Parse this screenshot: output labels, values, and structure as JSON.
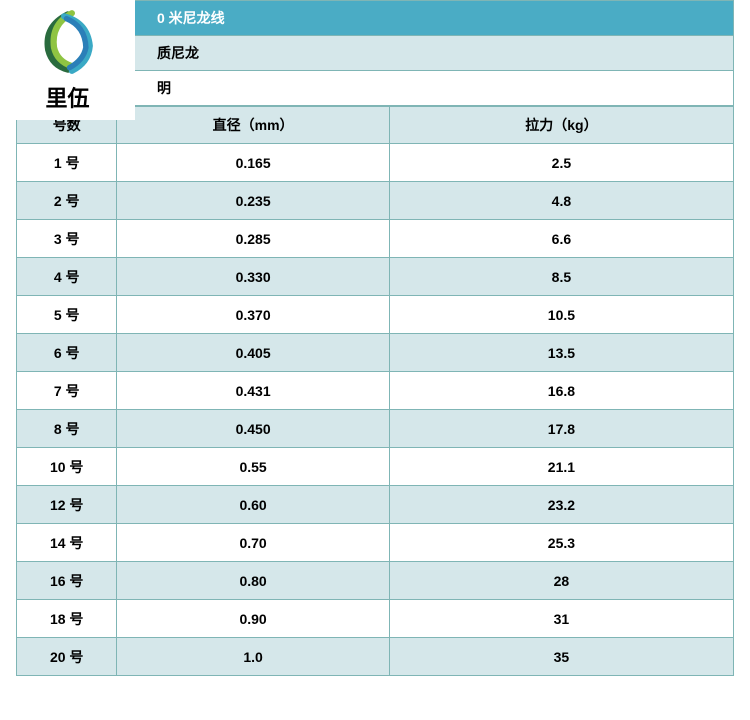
{
  "logo": {
    "brand_text": "里伍",
    "swirl_colors": {
      "dark_green": "#2a6b3e",
      "light_green": "#8fc442",
      "teal": "#3aa9c5",
      "blue": "#2b7fb8"
    }
  },
  "header": {
    "title_partial": "0 米尼龙线",
    "material_partial": "质尼龙",
    "note_partial": "明"
  },
  "table": {
    "columns": [
      "号数",
      "直径（mm）",
      "拉力（kg）"
    ],
    "column_widths_pct": [
      14,
      38,
      48
    ],
    "rows": [
      [
        "1 号",
        "0.165",
        "2.5"
      ],
      [
        "2 号",
        "0.235",
        "4.8"
      ],
      [
        "3 号",
        "0.285",
        "6.6"
      ],
      [
        "4 号",
        "0.330",
        "8.5"
      ],
      [
        "5 号",
        "0.370",
        "10.5"
      ],
      [
        "6 号",
        "0.405",
        "13.5"
      ],
      [
        "7 号",
        "0.431",
        "16.8"
      ],
      [
        "8 号",
        "0.450",
        "17.8"
      ],
      [
        "10 号",
        "0.55",
        "21.1"
      ],
      [
        "12 号",
        "0.60",
        "23.2"
      ],
      [
        "14 号",
        "0.70",
        "25.3"
      ],
      [
        "16 号",
        "0.80",
        "28"
      ],
      [
        "18 号",
        "0.90",
        "31"
      ],
      [
        "20 号",
        "1.0",
        "35"
      ]
    ]
  },
  "styling": {
    "header_bg_primary": "#4aacc5",
    "header_bg_secondary": "#d5e7ea",
    "header_text_primary": "#ffffff",
    "border_color": "#7fb5b5",
    "row_bg_odd": "#ffffff",
    "row_bg_even": "#d5e7ea",
    "font_size_cell": 14,
    "font_weight": "bold",
    "cell_text_align": "center"
  }
}
